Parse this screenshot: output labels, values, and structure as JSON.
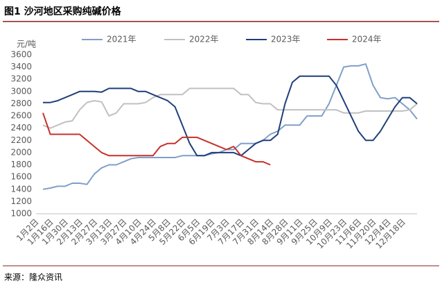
{
  "chart_data": {
    "type": "line",
    "title": "图1  沙河地区采购纯碱价格",
    "y_label": "元/吨",
    "source": "来源：隆众资讯",
    "categories": [
      "1月2日",
      null,
      "1月16日",
      null,
      "1月30日",
      null,
      "2月13日",
      null,
      "2月27日",
      null,
      "3月13日",
      null,
      "3月27日",
      null,
      "4月10日",
      null,
      "4月24日",
      null,
      "5月8日",
      null,
      "5月22日",
      null,
      "6月5日",
      null,
      "6月19日",
      null,
      "7月3日",
      null,
      "7月17日",
      null,
      "7月31日",
      null,
      "8月14日",
      null,
      "8月28日",
      null,
      "9月11日",
      null,
      "9月25日",
      null,
      "10月9日",
      null,
      "10月23日",
      null,
      "11月6日",
      null,
      "11月20日",
      null,
      "12月4日",
      null,
      "12月18日",
      null
    ],
    "series": [
      {
        "name": "2021年",
        "color": "#7f9fc9",
        "values": [
          1400,
          1420,
          1450,
          1450,
          1500,
          1500,
          1480,
          1650,
          1750,
          1800,
          1800,
          1850,
          1900,
          1920,
          1920,
          1920,
          1920,
          1920,
          1920,
          1950,
          1950,
          1950,
          1950,
          1980,
          2000,
          2050,
          2050,
          2150,
          2150,
          2150,
          2200,
          2300,
          2350,
          2450,
          2450,
          2450,
          2600,
          2600,
          2600,
          2800,
          3100,
          3400,
          3420,
          3420,
          3450,
          3100,
          2900,
          2880,
          2900,
          2800,
          2700,
          2550
        ]
      },
      {
        "name": "2022年",
        "color": "#c0c0c0",
        "values": [
          2450,
          2400,
          2450,
          2500,
          2520,
          2700,
          2820,
          2850,
          2830,
          2600,
          2650,
          2800,
          2800,
          2800,
          2820,
          2900,
          2950,
          2950,
          2950,
          2950,
          3050,
          3050,
          3050,
          3050,
          3050,
          3050,
          3050,
          2950,
          2950,
          2820,
          2800,
          2800,
          2700,
          2700,
          2700,
          2700,
          2700,
          2700,
          2700,
          2700,
          2700,
          2650,
          2650,
          2650,
          2680,
          2680,
          2680,
          2680,
          2680,
          2680,
          2700,
          2800
        ]
      },
      {
        "name": "2023年",
        "color": "#1f3f7a",
        "values": [
          2820,
          2820,
          2850,
          2900,
          2950,
          3000,
          3000,
          3000,
          2990,
          3050,
          3050,
          3050,
          3050,
          3000,
          3000,
          2950,
          2900,
          2850,
          2750,
          2450,
          2150,
          1950,
          1950,
          2000,
          2000,
          2000,
          2000,
          1950,
          2050,
          2150,
          2200,
          2200,
          2300,
          2800,
          3150,
          3250,
          3250,
          3250,
          3250,
          3250,
          3100,
          2850,
          2600,
          2350,
          2200,
          2200,
          2350,
          2550,
          2750,
          2900,
          2900,
          2800
        ]
      },
      {
        "name": "2024年",
        "color": "#c8302a",
        "values": [
          2650,
          2300,
          2300,
          2300,
          2300,
          2300,
          2200,
          2100,
          2000,
          1950,
          1950,
          1950,
          1950,
          1950,
          1950,
          1950,
          2100,
          2150,
          2150,
          2250,
          2250,
          2250,
          2200,
          2150,
          2100,
          2050,
          2100,
          1950,
          1900,
          1850,
          1850,
          1800,
          null,
          null,
          null,
          null,
          null,
          null,
          null,
          null,
          null,
          null,
          null,
          null,
          null,
          null,
          null,
          null,
          null,
          null,
          null,
          null
        ]
      }
    ],
    "ylim": [
      1000,
      3600
    ],
    "yticks": [
      1000,
      1200,
      1400,
      1600,
      1800,
      2000,
      2200,
      2400,
      2600,
      2800,
      3000,
      3200,
      3400,
      3600
    ],
    "grid": false
  }
}
